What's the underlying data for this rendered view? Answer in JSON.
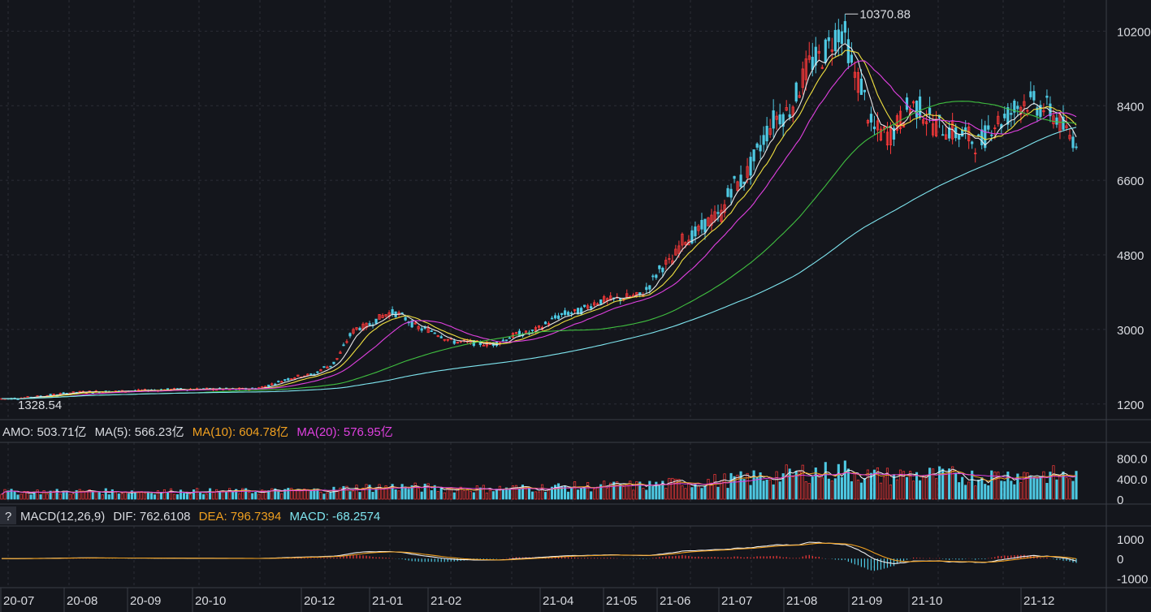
{
  "chart_data": [
    {
      "type": "candlestick",
      "panel": "price",
      "x_tick_labels": [
        "20-07",
        "20-08",
        "20-09",
        "20-10",
        "20-12",
        "21-01",
        "21-02",
        "21-04",
        "21-05",
        "21-06",
        "21-07",
        "21-08",
        "21-09",
        "21-10",
        "21-12"
      ],
      "y_tick_labels": [
        "10200",
        "8400",
        "6600",
        "4800",
        "3000",
        "1200"
      ],
      "ylim": [
        1000,
        10600
      ],
      "annotations": {
        "max_label": "10370.88",
        "min_label": "1328.54"
      },
      "ma_colors": {
        "ma5": "#e8e8e8",
        "ma10": "#f0e040",
        "ma20": "#e040e0",
        "ma60": "#40c040",
        "ma120": "#7fe6f0"
      },
      "key_points": [
        {
          "t": 0,
          "v": 1330
        },
        {
          "t": 30,
          "v": 1500
        },
        {
          "t": 60,
          "v": 1560
        },
        {
          "t": 75,
          "v": 1560
        },
        {
          "t": 95,
          "v": 1900
        },
        {
          "t": 100,
          "v": 2100
        },
        {
          "t": 110,
          "v": 3050
        },
        {
          "t": 120,
          "v": 3400
        },
        {
          "t": 130,
          "v": 3000
        },
        {
          "t": 140,
          "v": 2700
        },
        {
          "t": 150,
          "v": 2650
        },
        {
          "t": 160,
          "v": 2900
        },
        {
          "t": 175,
          "v": 3400
        },
        {
          "t": 185,
          "v": 3700
        },
        {
          "t": 195,
          "v": 3800
        },
        {
          "t": 205,
          "v": 4600
        },
        {
          "t": 210,
          "v": 5200
        },
        {
          "t": 220,
          "v": 5700
        },
        {
          "t": 225,
          "v": 6500
        },
        {
          "t": 240,
          "v": 8200
        },
        {
          "t": 250,
          "v": 9500
        },
        {
          "t": 258,
          "v": 10200
        },
        {
          "t": 263,
          "v": 9000
        },
        {
          "t": 268,
          "v": 7800
        },
        {
          "t": 272,
          "v": 7700
        },
        {
          "t": 280,
          "v": 8400
        },
        {
          "t": 288,
          "v": 7900
        },
        {
          "t": 295,
          "v": 7700
        },
        {
          "t": 300,
          "v": 7500
        },
        {
          "t": 305,
          "v": 8000
        },
        {
          "t": 315,
          "v": 8500
        },
        {
          "t": 320,
          "v": 8350
        },
        {
          "t": 330,
          "v": 7600
        }
      ]
    },
    {
      "type": "bar",
      "panel": "volume",
      "legend": {
        "amo": "AMO: 503.71亿",
        "ma5": "MA(5): 566.23亿",
        "ma10": "MA(10): 604.78亿",
        "ma20": "MA(20): 576.95亿"
      },
      "y_tick_labels": [
        "800.0",
        "400.0",
        "0"
      ],
      "ylim": [
        0,
        1000
      ]
    },
    {
      "type": "bar",
      "panel": "macd",
      "legend": {
        "help": "?",
        "name": "MACD(12,26,9)",
        "dif": "DIF: 762.6108",
        "dea": "DEA: 796.7394",
        "macd": "MACD: -68.2574"
      },
      "y_tick_labels": [
        "1000",
        "0",
        "-1000"
      ],
      "ylim": [
        -1400,
        1500
      ]
    }
  ],
  "colors": {
    "up": "#ff3a3a",
    "down": "#4ec9e3",
    "dif": "#f0f0f0",
    "dea": "#f0a020",
    "macd_text": "#7fe6f0",
    "ma20_text": "#e040e0",
    "ma10_text": "#f0a020",
    "max_label": "#ff3a3a",
    "min_label": "#40c040"
  }
}
